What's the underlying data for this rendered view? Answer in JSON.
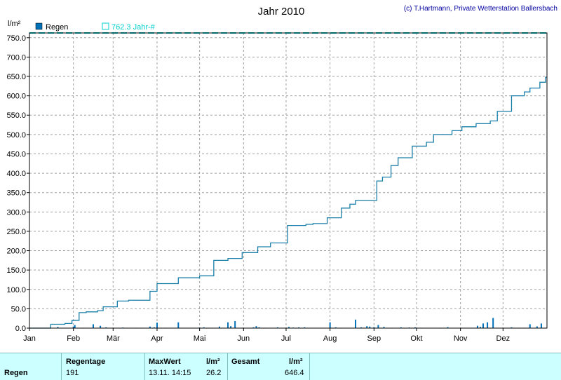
{
  "title": "Jahr 2010",
  "copyright": "(c) T.Hartmann, Private Wetterstation Ballersbach",
  "unit": "l/m²",
  "legend": {
    "regen": "Regen",
    "jahr": "762.3 Jahr-#"
  },
  "colors": {
    "line": "#1a7fa8",
    "bars": "#0070b8",
    "jahr_line": "#00d0d0",
    "grid": "#a0a0a0",
    "stats_bg": "#ccffff"
  },
  "chart_data": {
    "type": "line",
    "title": "Jahr 2010",
    "ylabel": "l/m²",
    "ylim": [
      0,
      762.3
    ],
    "yticks": [
      "0.0",
      "50.0",
      "100.0",
      "150.0",
      "200.0",
      "250.0",
      "300.0",
      "350.0",
      "400.0",
      "450.0",
      "500.0",
      "550.0",
      "600.0",
      "650.0",
      "700.0",
      "750.0"
    ],
    "xlabels": [
      "Jan",
      "Feb",
      "Mär",
      "Apr",
      "Mai",
      "Jun",
      "Jul",
      "Aug",
      "Sep",
      "Okt",
      "Nov",
      "Dez"
    ],
    "grid": true,
    "legend_position": "top-left",
    "jahr_reference": 762.3,
    "series": [
      {
        "name": "Regen",
        "kind": "cumulative-line",
        "x": [
          0,
          14,
          15,
          25,
          30,
          35,
          40,
          48,
          52,
          62,
          70,
          85,
          90,
          105,
          116,
          120,
          130,
          140,
          150,
          161,
          170,
          182,
          195,
          200,
          210,
          220,
          226,
          230,
          245,
          249,
          255,
          260,
          270,
          280,
          285,
          298,
          305,
          315,
          325,
          330,
          340,
          349,
          353,
          360,
          364
        ],
        "y": [
          0,
          0,
          10,
          12,
          20,
          40,
          42,
          45,
          55,
          70,
          72,
          95,
          115,
          130,
          130,
          135,
          175,
          180,
          195,
          210,
          220,
          265,
          268,
          270,
          285,
          310,
          320,
          330,
          380,
          390,
          420,
          440,
          470,
          480,
          500,
          510,
          520,
          528,
          535,
          560,
          600,
          610,
          620,
          635,
          648
        ]
      },
      {
        "name": "Regen",
        "kind": "daily-bars",
        "day": [
          14,
          18,
          20,
          31,
          32,
          38,
          40,
          45,
          50,
          54,
          66,
          75,
          79,
          85,
          88,
          90,
          96,
          105,
          120,
          123,
          126,
          130,
          134,
          140,
          142,
          145,
          150,
          155,
          158,
          160,
          162,
          166,
          175,
          183,
          186,
          190,
          194,
          212,
          216,
          220,
          224,
          230,
          234,
          238,
          240,
          243,
          246,
          250,
          256,
          262,
          268,
          272,
          276,
          290,
          295,
          305,
          312,
          315,
          316,
          318,
          320,
          323,
          327,
          332,
          340,
          345,
          349,
          353,
          358,
          361
        ],
        "mm": [
          1,
          0.5,
          3,
          4,
          8,
          1,
          0.5,
          10,
          6,
          2,
          1.5,
          1,
          1,
          4,
          2,
          14,
          1,
          15,
          1.5,
          2,
          1,
          0.5,
          4,
          15,
          5,
          18,
          1,
          0.5,
          2,
          5,
          2,
          1,
          2,
          3,
          1.5,
          2,
          2,
          15,
          2,
          1,
          0.5,
          22,
          2,
          5,
          4,
          2.5,
          8,
          3,
          1,
          2,
          1.5,
          2,
          1,
          1,
          2.5,
          1,
          1,
          1,
          6,
          3,
          12,
          15,
          26.2,
          0.5,
          2,
          1,
          1,
          10,
          4.5,
          12
        ]
      }
    ]
  },
  "stats": {
    "row_label": "Regen",
    "regentage_label": "Regentage",
    "regentage_value": "191",
    "maxwert_label": "MaxWert",
    "maxwert_unit": "l/m²",
    "maxwert_date": "13.11.  14:15",
    "maxwert_value": "26.2",
    "gesamt_label": "Gesamt",
    "gesamt_unit": "l/m²",
    "gesamt_value": "646.4"
  }
}
